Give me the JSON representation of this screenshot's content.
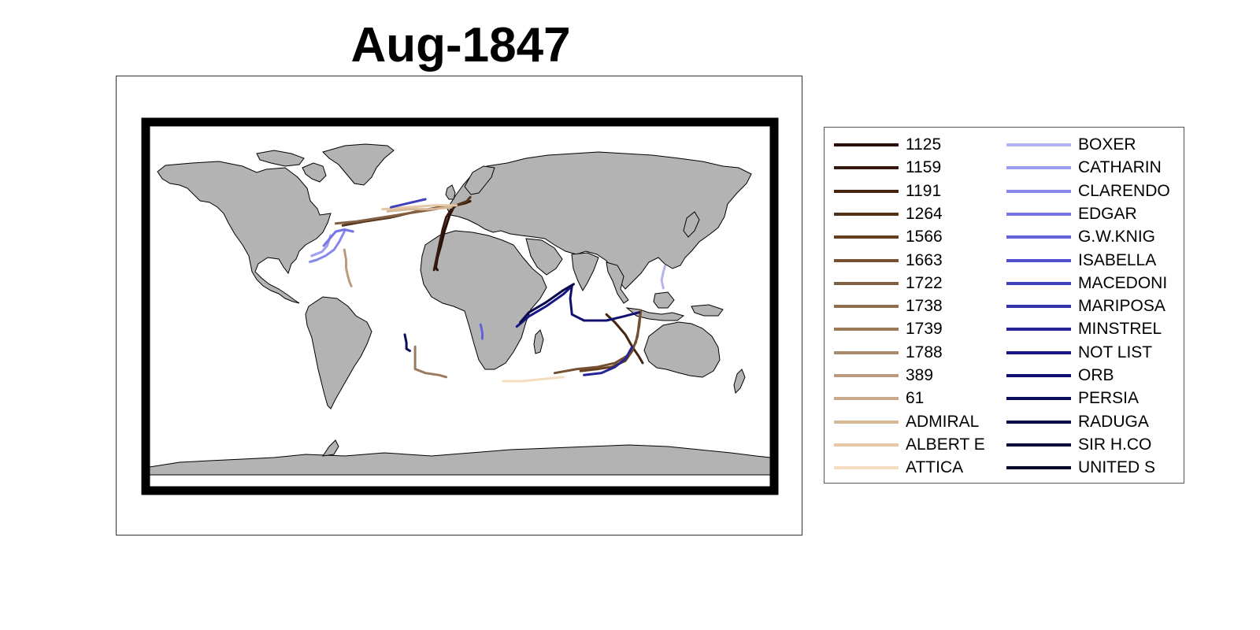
{
  "title": "Aug-1847",
  "colors": {
    "land": "#b3b3b3",
    "coastline": "#000000",
    "frame": "#000000"
  },
  "legend": {
    "columns": 2,
    "entries": [
      {
        "label": "1125",
        "color": "#2a0f0a"
      },
      {
        "label": "1159",
        "color": "#341a0d"
      },
      {
        "label": "1191",
        "color": "#432510"
      },
      {
        "label": "1264",
        "color": "#553318"
      },
      {
        "label": "1566",
        "color": "#644020"
      },
      {
        "label": "1663",
        "color": "#744f32"
      },
      {
        "label": "1722",
        "color": "#826043"
      },
      {
        "label": "1738",
        "color": "#8f6c4e"
      },
      {
        "label": "1739",
        "color": "#9b7a5c"
      },
      {
        "label": "1788",
        "color": "#aa8a6c"
      },
      {
        "label": "389",
        "color": "#bb9b7e"
      },
      {
        "label": "61",
        "color": "#c9a98c"
      },
      {
        "label": "ADMIRAL",
        "color": "#d6b897"
      },
      {
        "label": "ALBERT E",
        "color": "#e4c8a8"
      },
      {
        "label": "ATTICA",
        "color": "#f5dcc1"
      },
      {
        "label": "BOXER",
        "color": "#b4b4f0"
      },
      {
        "label": "CATHARIN",
        "color": "#9e9ef0"
      },
      {
        "label": "CLARENDO",
        "color": "#8888ec"
      },
      {
        "label": "EDGAR",
        "color": "#7575e6"
      },
      {
        "label": "G.W.KNIG",
        "color": "#6262da"
      },
      {
        "label": "ISABELLA",
        "color": "#5050cc"
      },
      {
        "label": "MACEDONI",
        "color": "#4040bc"
      },
      {
        "label": "MARIPOSA",
        "color": "#3232aa"
      },
      {
        "label": "MINSTREL",
        "color": "#242496"
      },
      {
        "label": "NOT LIST",
        "color": "#181884"
      },
      {
        "label": "ORB",
        "color": "#101070"
      },
      {
        "label": "PERSIA",
        "color": "#0c0c5c"
      },
      {
        "label": "RADUGA",
        "color": "#08084a"
      },
      {
        "label": "SIR H.CO",
        "color": "#05053a"
      },
      {
        "label": "UNITED S",
        "color": "#03032a"
      }
    ]
  },
  "tracks": [
    {
      "ship": "1125",
      "points": [
        [
          -3,
          50
        ],
        [
          -6,
          45
        ],
        [
          -9,
          37
        ],
        [
          -11,
          30
        ],
        [
          -13,
          24
        ],
        [
          -14,
          19
        ],
        [
          -13,
          18
        ]
      ]
    },
    {
      "ship": "1159",
      "points": [
        [
          6,
          52
        ],
        [
          3,
          51
        ],
        [
          -2,
          50
        ],
        [
          -5,
          48
        ],
        [
          -8,
          44
        ],
        [
          -10,
          38
        ],
        [
          -12,
          30
        ],
        [
          -14,
          22
        ],
        [
          -15,
          18
        ]
      ]
    },
    {
      "ship": "1191",
      "points": [
        [
          85,
          -4
        ],
        [
          90,
          -8
        ],
        [
          96,
          -14
        ],
        [
          100,
          -20
        ],
        [
          104,
          -25
        ],
        [
          106,
          -28
        ]
      ]
    },
    {
      "ship": "1264",
      "points": [
        [
          6,
          54
        ],
        [
          4,
          52
        ],
        [
          -2,
          50
        ],
        [
          -12,
          49
        ],
        [
          -25,
          47
        ],
        [
          -40,
          44
        ],
        [
          -55,
          42
        ],
        [
          -68,
          40
        ]
      ]
    },
    {
      "ship": "1566",
      "points": [
        [
          105,
          -2
        ],
        [
          104,
          -8
        ],
        [
          103,
          -15
        ],
        [
          100,
          -22
        ],
        [
          96,
          -27
        ],
        [
          88,
          -30
        ],
        [
          80,
          -31
        ],
        [
          70,
          -32
        ]
      ]
    },
    {
      "ship": "1663",
      "points": [
        [
          105,
          -2
        ],
        [
          104,
          -10
        ],
        [
          102,
          -18
        ],
        [
          98,
          -24
        ],
        [
          90,
          -28
        ],
        [
          80,
          -30
        ],
        [
          68,
          -31
        ],
        [
          55,
          -33
        ]
      ]
    },
    {
      "ship": "1722",
      "points": [
        [
          -3,
          50
        ],
        [
          -15,
          48
        ],
        [
          -30,
          46
        ],
        [
          -45,
          44
        ],
        [
          -60,
          42
        ],
        [
          -72,
          41
        ]
      ]
    },
    {
      "ship": "1739",
      "points": [
        [
          -26,
          -20
        ],
        [
          -26,
          -31
        ],
        [
          -20,
          -33
        ],
        [
          -12,
          -34
        ],
        [
          -8,
          -35
        ]
      ]
    },
    {
      "ship": "389",
      "points": [
        [
          -67,
          28
        ],
        [
          -66,
          23
        ],
        [
          -66,
          19
        ],
        [
          -65,
          15
        ],
        [
          -64,
          12
        ],
        [
          -63,
          10
        ]
      ]
    },
    {
      "ship": "ALBERT E",
      "points": [
        [
          -2,
          50
        ],
        [
          -15,
          50
        ],
        [
          -30,
          49
        ],
        [
          -45,
          48
        ]
      ]
    },
    {
      "ship": "ATTICA",
      "points": [
        [
          60,
          -35
        ],
        [
          48,
          -36
        ],
        [
          36,
          -37
        ],
        [
          25,
          -37
        ]
      ]
    },
    {
      "ship": "ADMIRAL",
      "points": [
        [
          -5,
          49
        ],
        [
          -18,
          48
        ],
        [
          -30,
          48
        ],
        [
          -42,
          47
        ]
      ]
    },
    {
      "ship": "CATHARIN",
      "points": [
        [
          -75,
          35
        ],
        [
          -77,
          30
        ],
        [
          -80,
          27
        ],
        [
          -83,
          26
        ],
        [
          -86,
          25
        ]
      ]
    },
    {
      "ship": "CLARENDO",
      "points": [
        [
          -67,
          37
        ],
        [
          -70,
          32
        ],
        [
          -73,
          28
        ],
        [
          -78,
          25
        ],
        [
          -83,
          23
        ],
        [
          -87,
          22
        ]
      ]
    },
    {
      "ship": "EDGAR",
      "points": [
        [
          -62,
          37
        ],
        [
          -67,
          38
        ],
        [
          -72,
          37
        ],
        [
          -76,
          33
        ],
        [
          -79,
          30
        ]
      ]
    },
    {
      "ship": "BOXER",
      "points": [
        [
          119,
          20
        ],
        [
          118,
          17
        ],
        [
          117,
          13
        ],
        [
          118,
          9
        ]
      ]
    },
    {
      "ship": "G.W.KNIG",
      "points": [
        [
          12,
          -9
        ],
        [
          13,
          -13
        ],
        [
          13,
          -16
        ]
      ]
    },
    {
      "ship": "MACEDONI",
      "points": [
        [
          -20,
          53
        ],
        [
          -30,
          51
        ],
        [
          -40,
          49
        ]
      ]
    },
    {
      "ship": "MINSTREL",
      "points": [
        [
          100,
          -20
        ],
        [
          96,
          -26
        ],
        [
          90,
          -30
        ],
        [
          82,
          -33
        ],
        [
          72,
          -34
        ]
      ]
    },
    {
      "ship": "NOT LIST",
      "points": [
        [
          33,
          -10
        ],
        [
          40,
          -5
        ],
        [
          50,
          0
        ],
        [
          60,
          6
        ],
        [
          65,
          10
        ]
      ]
    },
    {
      "ship": "ORB",
      "points": [
        [
          65,
          10
        ],
        [
          64,
          4
        ],
        [
          65,
          -4
        ],
        [
          72,
          -7
        ],
        [
          85,
          -7
        ],
        [
          95,
          -5
        ],
        [
          104,
          -3
        ]
      ]
    },
    {
      "ship": "PERSIA",
      "points": [
        [
          -32,
          -14
        ],
        [
          -31,
          -18
        ],
        [
          -31,
          -21
        ],
        [
          -29,
          -22
        ]
      ]
    },
    {
      "ship": "RADUGA",
      "points": [
        [
          35,
          -8
        ],
        [
          40,
          -3
        ],
        [
          50,
          2
        ],
        [
          60,
          8
        ],
        [
          66,
          11
        ]
      ]
    }
  ]
}
